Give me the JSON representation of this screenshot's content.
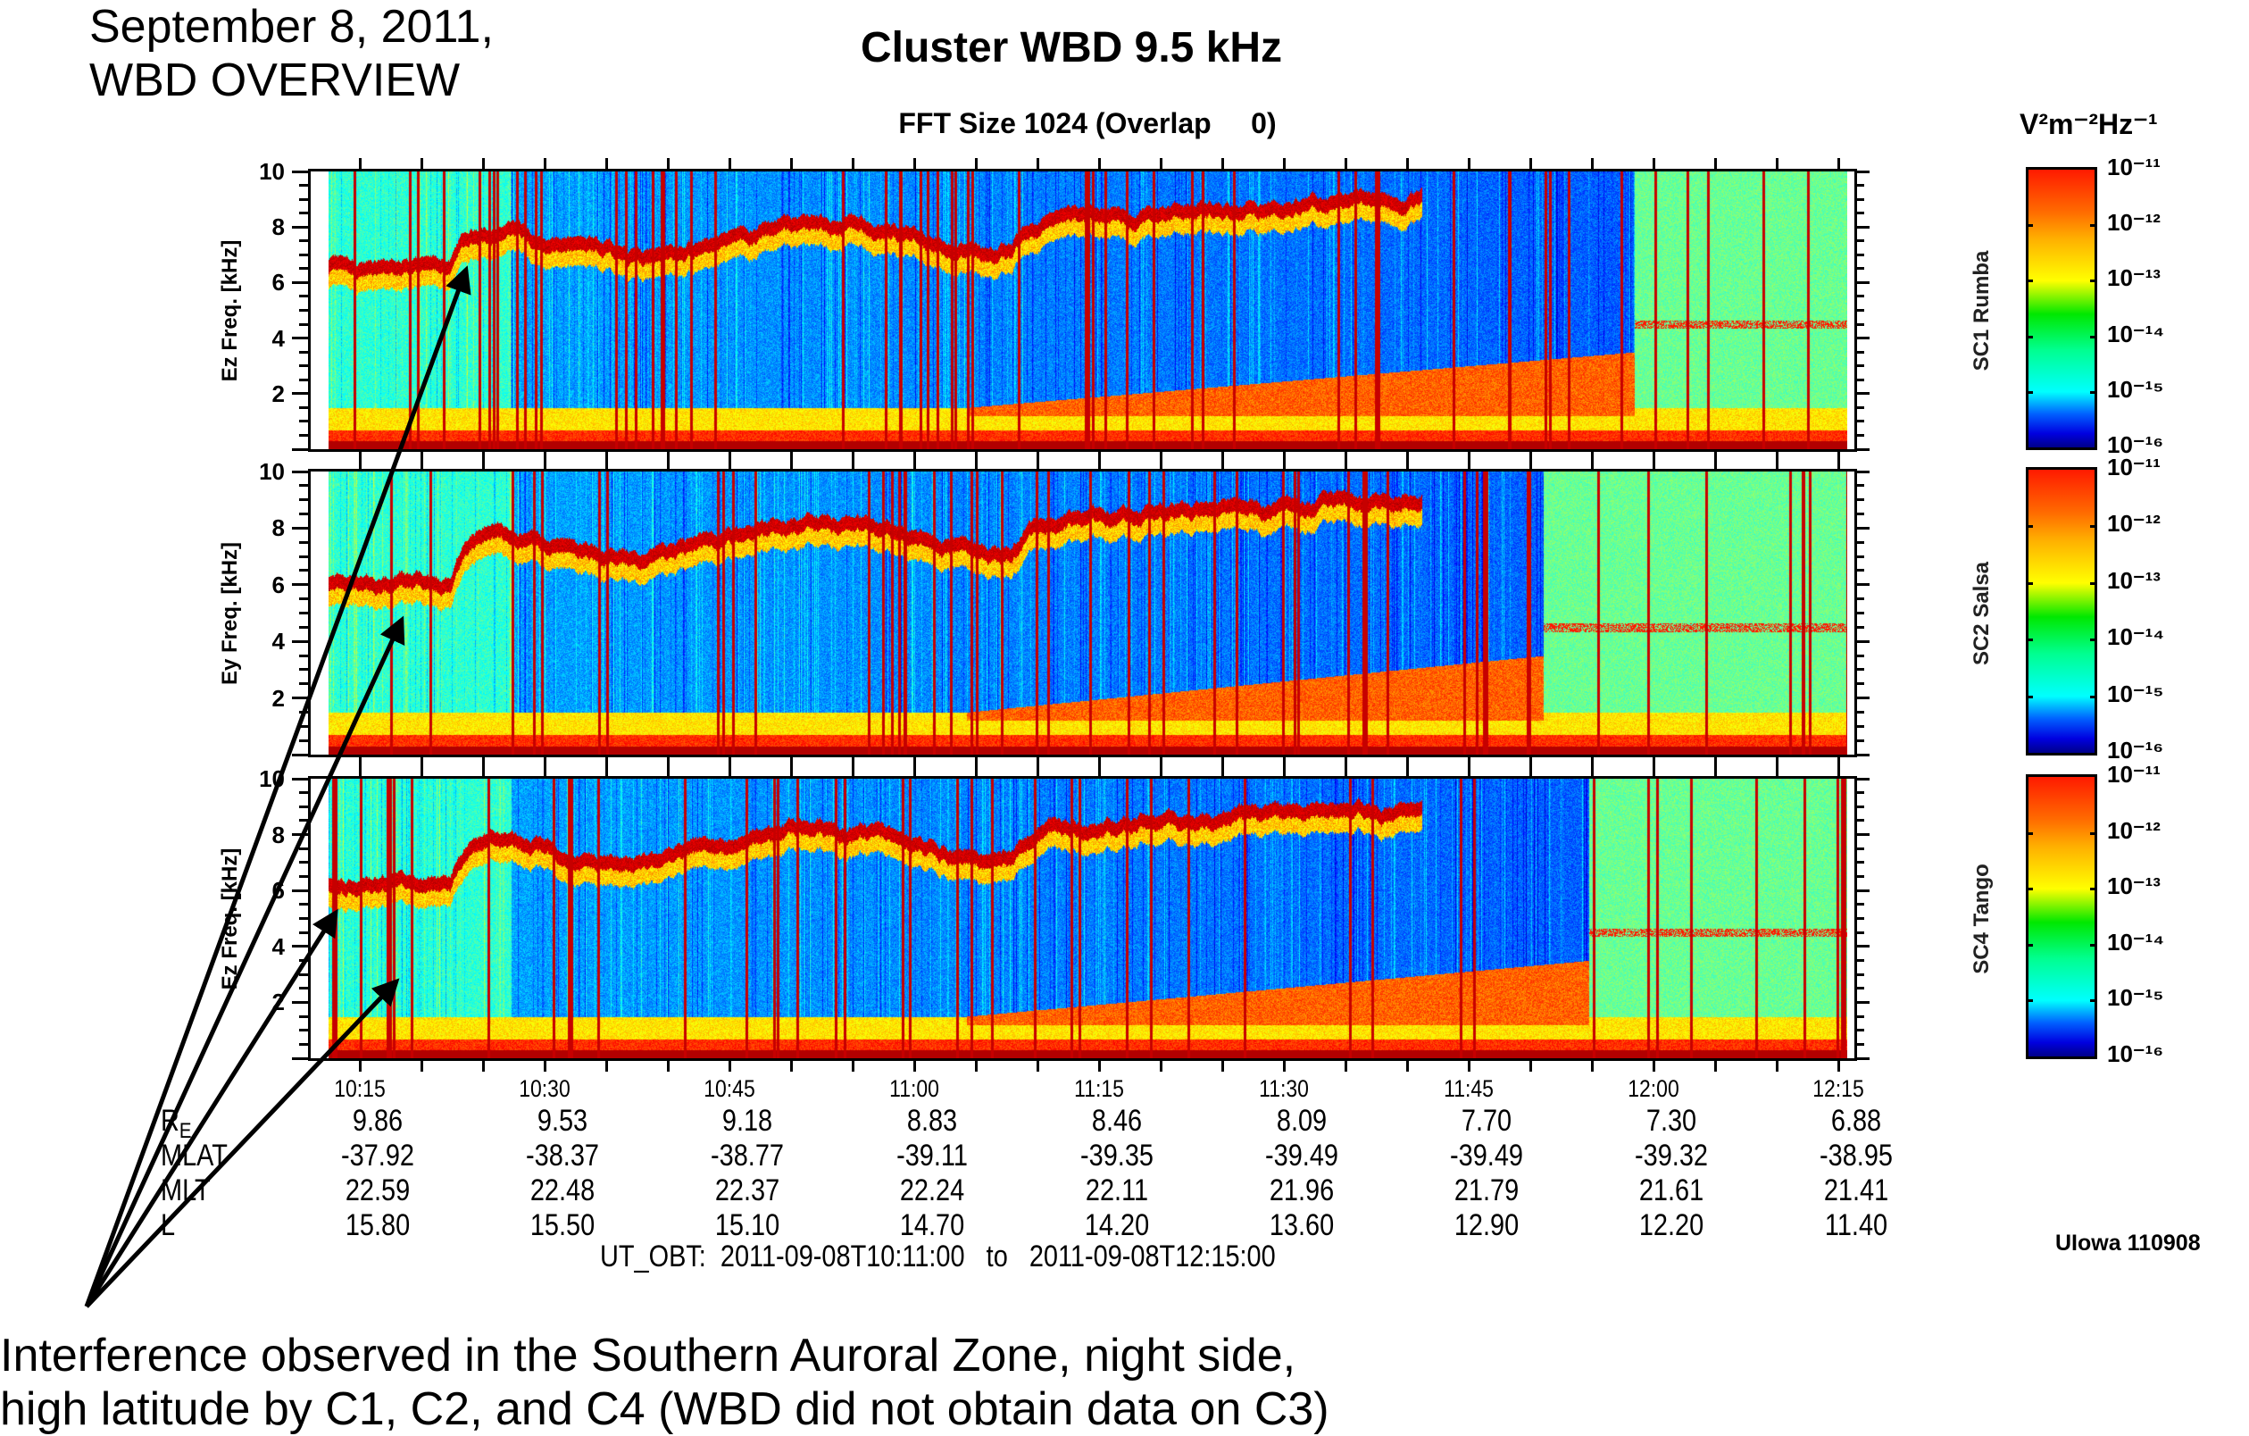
{
  "annotation": {
    "date_line1": "September 8, 2011,",
    "date_line2": "WBD OVERVIEW",
    "caption_line1": "Interference observed in the Southern Auroral Zone, night side,",
    "caption_line2": "high latitude by C1, C2, and C4 (WBD did not obtain data on C3)"
  },
  "credit": "UIowa 110908",
  "chart_data": {
    "type": "heatmap",
    "title": "Cluster WBD 9.5 kHz",
    "subtitle": "FFT Size 1024 (Overlap     0)",
    "colorbar_label": "V²m⁻²Hz⁻¹",
    "colorbar_ticks": [
      "10⁻¹¹",
      "10⁻¹²",
      "10⁻¹³",
      "10⁻¹⁴",
      "10⁻¹⁵",
      "10⁻¹⁶"
    ],
    "colorbar_range_log10": [
      -16,
      -11
    ],
    "ylim_khz": [
      0,
      10
    ],
    "yticks": [
      "10",
      "8",
      "6",
      "4",
      "2"
    ],
    "xticks": [
      "10:15",
      "10:30",
      "10:45",
      "11:00",
      "11:15",
      "11:30",
      "11:45",
      "12:00",
      "12:15"
    ],
    "time_range": "10:11 to 12:15 UT",
    "panels": [
      {
        "ylabel": "Ez Freq. [kHz]",
        "spacecraft": "SC1 Rumba"
      },
      {
        "ylabel": "Ey Freq. [kHz]",
        "spacecraft": "SC2 Salsa"
      },
      {
        "ylabel": "Ez Freq. [kHz]",
        "spacecraft": "SC4 Tango"
      }
    ],
    "ephemeris": [
      {
        "label": "RE",
        "values": [
          "9.86",
          "9.53",
          "9.18",
          "8.83",
          "8.46",
          "8.09",
          "7.70",
          "7.30",
          "6.88"
        ]
      },
      {
        "label": "MLAT",
        "values": [
          "-37.92",
          "-38.37",
          "-38.77",
          "-39.11",
          "-39.35",
          "-39.49",
          "-39.49",
          "-39.32",
          "-38.95"
        ]
      },
      {
        "label": "MLT",
        "values": [
          "22.59",
          "22.48",
          "22.37",
          "22.24",
          "22.11",
          "21.96",
          "21.79",
          "21.61",
          "21.41"
        ]
      },
      {
        "label": "L",
        "values": [
          "15.80",
          "15.50",
          "15.10",
          "14.70",
          "14.20",
          "13.60",
          "12.90",
          "12.20",
          "11.40"
        ]
      }
    ],
    "ut_obt": "UT_OBT:  2011-09-08T10:11:00   to   2011-09-08T12:15:00"
  }
}
